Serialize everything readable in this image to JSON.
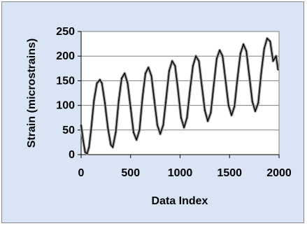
{
  "chart_data": {
    "type": "line",
    "xlabel": "Data Index",
    "ylabel": "Strain (microstrains)",
    "xlim": [
      0,
      2000
    ],
    "ylim": [
      0,
      250
    ],
    "xticks": [
      0,
      500,
      1000,
      1500,
      2000
    ],
    "yticks": [
      0,
      50,
      100,
      150,
      200,
      250
    ],
    "grid": "horizontal",
    "legend": "none",
    "colors": {
      "plot_area": "#ffffff",
      "frame": "#d9e4f5",
      "line": "#000000",
      "marker": "#9a9a9a"
    },
    "series": [
      {
        "x": [
          0,
          20,
          40,
          60,
          80,
          100,
          130,
          160,
          190,
          210,
          240,
          270,
          300,
          320,
          350,
          380,
          410,
          440,
          470,
          500,
          530,
          560,
          590,
          620,
          650,
          680,
          710,
          740,
          770,
          800,
          830,
          860,
          890,
          920,
          950,
          980,
          1010,
          1040,
          1070,
          1100,
          1130,
          1160,
          1190,
          1220,
          1250,
          1280,
          1310,
          1340,
          1370,
          1400,
          1430,
          1460,
          1490,
          1520,
          1550,
          1580,
          1610,
          1640,
          1670,
          1700,
          1730,
          1760,
          1790,
          1820,
          1850,
          1880,
          1910,
          1940,
          1970,
          1990
        ],
        "y": [
          60,
          30,
          5,
          2,
          15,
          50,
          110,
          145,
          152,
          145,
          105,
          55,
          20,
          15,
          45,
          110,
          155,
          165,
          145,
          95,
          45,
          30,
          50,
          115,
          165,
          177,
          160,
          110,
          60,
          42,
          60,
          115,
          170,
          190,
          180,
          130,
          75,
          55,
          75,
          130,
          180,
          200,
          190,
          140,
          90,
          68,
          85,
          140,
          195,
          212,
          200,
          150,
          100,
          80,
          98,
          155,
          205,
          224,
          210,
          160,
          108,
          88,
          105,
          165,
          215,
          236,
          230,
          190,
          200,
          172
        ]
      }
    ]
  }
}
